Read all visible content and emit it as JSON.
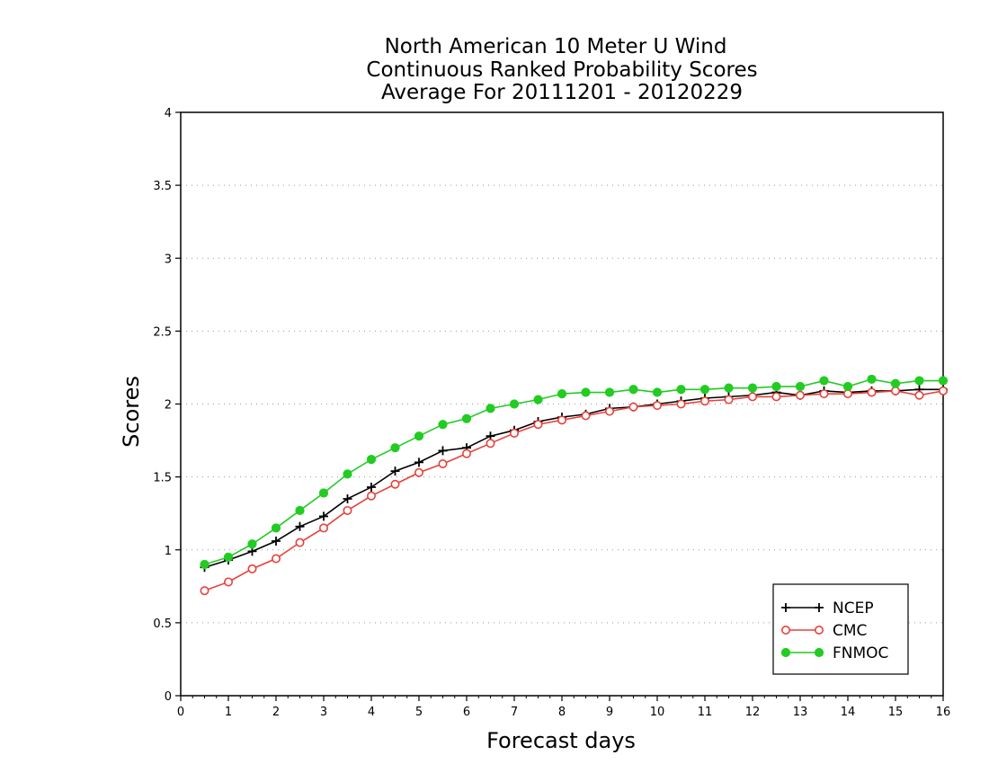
{
  "chart_data": {
    "type": "line",
    "title_lines": [
      "North American 10 Meter U Wind",
      "Continuous Ranked Probability Scores",
      "Average For 20111201 - 20120229"
    ],
    "xlabel": "Forecast days",
    "ylabel": "Scores",
    "xlim": [
      0,
      16
    ],
    "ylim": [
      0,
      4
    ],
    "x_ticks": [
      "0",
      "1",
      "2",
      "3",
      "4",
      "5",
      "6",
      "7",
      "8",
      "9",
      "10",
      "11",
      "12",
      "13",
      "14",
      "15",
      "16"
    ],
    "y_ticks": [
      "0",
      "0.5",
      "1",
      "1.5",
      "2",
      "2.5",
      "3",
      "3.5",
      "4"
    ],
    "grid": "horizontal dotted",
    "legend_position": "bottom-right",
    "x": [
      0.5,
      1,
      1.5,
      2,
      2.5,
      3,
      3.5,
      4,
      4.5,
      5,
      5.5,
      6,
      6.5,
      7,
      7.5,
      8,
      8.5,
      9,
      9.5,
      10,
      10.5,
      11,
      11.5,
      12,
      12.5,
      13,
      13.5,
      14,
      14.5,
      15,
      15.5,
      16
    ],
    "series": [
      {
        "name": "NCEP",
        "color": "#000000",
        "marker": "plus",
        "values": [
          0.88,
          0.93,
          0.99,
          1.06,
          1.16,
          1.23,
          1.35,
          1.43,
          1.54,
          1.6,
          1.68,
          1.7,
          1.78,
          1.82,
          1.88,
          1.91,
          1.93,
          1.97,
          1.98,
          2.0,
          2.02,
          2.04,
          2.05,
          2.06,
          2.08,
          2.06,
          2.09,
          2.08,
          2.09,
          2.09,
          2.1,
          2.1
        ]
      },
      {
        "name": "CMC",
        "color": "#e8403a",
        "marker": "open-circle",
        "values": [
          0.72,
          0.78,
          0.87,
          0.94,
          1.05,
          1.15,
          1.27,
          1.37,
          1.45,
          1.53,
          1.59,
          1.66,
          1.73,
          1.8,
          1.86,
          1.89,
          1.92,
          1.95,
          1.98,
          1.99,
          2.0,
          2.02,
          2.03,
          2.05,
          2.05,
          2.06,
          2.07,
          2.07,
          2.08,
          2.09,
          2.06,
          2.09
        ]
      },
      {
        "name": "FNMOC",
        "color": "#22cc22",
        "marker": "filled-circle",
        "values": [
          0.9,
          0.95,
          1.04,
          1.15,
          1.27,
          1.39,
          1.52,
          1.62,
          1.7,
          1.78,
          1.86,
          1.9,
          1.97,
          2.0,
          2.03,
          2.07,
          2.08,
          2.08,
          2.1,
          2.08,
          2.1,
          2.1,
          2.11,
          2.11,
          2.12,
          2.12,
          2.16,
          2.12,
          2.17,
          2.14,
          2.16,
          2.16
        ]
      }
    ]
  }
}
